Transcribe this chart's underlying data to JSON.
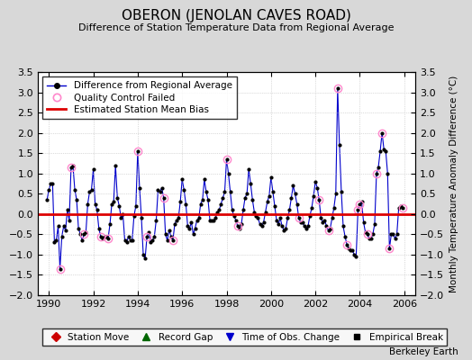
{
  "title": "OBERON (JENOLAN CAVES ROAD)",
  "subtitle": "Difference of Station Temperature Data from Regional Average",
  "ylabel_right": "Monthly Temperature Anomaly Difference (°C)",
  "credit": "Berkeley Earth",
  "xlim": [
    1989.5,
    2006.5
  ],
  "ylim": [
    -2.0,
    3.5
  ],
  "yticks": [
    -2,
    -1.5,
    -1,
    -0.5,
    0,
    0.5,
    1,
    1.5,
    2,
    2.5,
    3,
    3.5
  ],
  "xticks": [
    1990,
    1992,
    1994,
    1996,
    1998,
    2000,
    2002,
    2004,
    2006
  ],
  "bias_line": 0.0,
  "background_color": "#d8d8d8",
  "plot_bg_color": "#ffffff",
  "line_color": "#0000cc",
  "bias_color": "#dd0000",
  "qc_color": "#ff88cc",
  "data": [
    [
      1989.917,
      0.35
    ],
    [
      1990.0,
      0.6
    ],
    [
      1990.083,
      0.75
    ],
    [
      1990.167,
      0.75
    ],
    [
      1990.25,
      -0.7
    ],
    [
      1990.333,
      -0.65
    ],
    [
      1990.417,
      -0.3
    ],
    [
      1990.5,
      -1.35
    ],
    [
      1990.583,
      -0.55
    ],
    [
      1990.667,
      -0.3
    ],
    [
      1990.75,
      -0.4
    ],
    [
      1990.833,
      0.1
    ],
    [
      1990.917,
      -0.15
    ],
    [
      1991.0,
      1.15
    ],
    [
      1991.083,
      1.2
    ],
    [
      1991.167,
      0.6
    ],
    [
      1991.25,
      0.35
    ],
    [
      1991.333,
      -0.35
    ],
    [
      1991.417,
      -0.5
    ],
    [
      1991.5,
      -0.65
    ],
    [
      1991.583,
      -0.5
    ],
    [
      1991.667,
      -0.45
    ],
    [
      1991.75,
      0.25
    ],
    [
      1991.833,
      0.55
    ],
    [
      1991.917,
      0.6
    ],
    [
      1992.0,
      1.1
    ],
    [
      1992.083,
      0.25
    ],
    [
      1992.167,
      0.1
    ],
    [
      1992.25,
      -0.35
    ],
    [
      1992.333,
      -0.55
    ],
    [
      1992.417,
      -0.6
    ],
    [
      1992.5,
      -0.55
    ],
    [
      1992.583,
      -0.55
    ],
    [
      1992.667,
      -0.6
    ],
    [
      1992.75,
      -0.25
    ],
    [
      1992.833,
      0.25
    ],
    [
      1992.917,
      0.3
    ],
    [
      1993.0,
      1.2
    ],
    [
      1993.083,
      0.4
    ],
    [
      1993.167,
      0.2
    ],
    [
      1993.25,
      -0.1
    ],
    [
      1993.333,
      0.0
    ],
    [
      1993.417,
      -0.65
    ],
    [
      1993.5,
      -0.7
    ],
    [
      1993.583,
      -0.55
    ],
    [
      1993.667,
      -0.65
    ],
    [
      1993.75,
      -0.65
    ],
    [
      1993.833,
      -0.05
    ],
    [
      1993.917,
      0.2
    ],
    [
      1994.0,
      1.55
    ],
    [
      1994.083,
      0.65
    ],
    [
      1994.167,
      -0.1
    ],
    [
      1994.25,
      -1.0
    ],
    [
      1994.333,
      -1.1
    ],
    [
      1994.417,
      -0.55
    ],
    [
      1994.5,
      -0.45
    ],
    [
      1994.583,
      -0.7
    ],
    [
      1994.667,
      -0.65
    ],
    [
      1994.75,
      -0.55
    ],
    [
      1994.833,
      -0.15
    ],
    [
      1994.917,
      0.6
    ],
    [
      1995.0,
      0.55
    ],
    [
      1995.083,
      0.65
    ],
    [
      1995.167,
      0.4
    ],
    [
      1995.25,
      -0.5
    ],
    [
      1995.333,
      -0.65
    ],
    [
      1995.417,
      -0.4
    ],
    [
      1995.5,
      -0.55
    ],
    [
      1995.583,
      -0.65
    ],
    [
      1995.667,
      -0.25
    ],
    [
      1995.75,
      -0.15
    ],
    [
      1995.833,
      -0.1
    ],
    [
      1995.917,
      0.3
    ],
    [
      1996.0,
      0.85
    ],
    [
      1996.083,
      0.6
    ],
    [
      1996.167,
      0.25
    ],
    [
      1996.25,
      -0.3
    ],
    [
      1996.333,
      -0.35
    ],
    [
      1996.417,
      -0.2
    ],
    [
      1996.5,
      -0.5
    ],
    [
      1996.583,
      -0.35
    ],
    [
      1996.667,
      -0.15
    ],
    [
      1996.75,
      -0.1
    ],
    [
      1996.833,
      0.25
    ],
    [
      1996.917,
      0.35
    ],
    [
      1997.0,
      0.85
    ],
    [
      1997.083,
      0.55
    ],
    [
      1997.167,
      0.35
    ],
    [
      1997.25,
      -0.15
    ],
    [
      1997.333,
      -0.15
    ],
    [
      1997.417,
      -0.15
    ],
    [
      1997.5,
      -0.1
    ],
    [
      1997.583,
      0.05
    ],
    [
      1997.667,
      0.1
    ],
    [
      1997.75,
      0.25
    ],
    [
      1997.833,
      0.4
    ],
    [
      1997.917,
      0.55
    ],
    [
      1998.0,
      1.35
    ],
    [
      1998.083,
      1.0
    ],
    [
      1998.167,
      0.55
    ],
    [
      1998.25,
      0.1
    ],
    [
      1998.333,
      -0.05
    ],
    [
      1998.417,
      -0.15
    ],
    [
      1998.5,
      -0.3
    ],
    [
      1998.583,
      -0.35
    ],
    [
      1998.667,
      -0.25
    ],
    [
      1998.75,
      0.1
    ],
    [
      1998.833,
      0.4
    ],
    [
      1998.917,
      0.5
    ],
    [
      1999.0,
      1.1
    ],
    [
      1999.083,
      0.75
    ],
    [
      1999.167,
      0.35
    ],
    [
      1999.25,
      0.05
    ],
    [
      1999.333,
      -0.05
    ],
    [
      1999.417,
      -0.1
    ],
    [
      1999.5,
      -0.25
    ],
    [
      1999.583,
      -0.3
    ],
    [
      1999.667,
      -0.2
    ],
    [
      1999.75,
      0.05
    ],
    [
      1999.833,
      0.3
    ],
    [
      1999.917,
      0.45
    ],
    [
      2000.0,
      0.9
    ],
    [
      2000.083,
      0.55
    ],
    [
      2000.167,
      0.2
    ],
    [
      2000.25,
      -0.15
    ],
    [
      2000.333,
      -0.25
    ],
    [
      2000.417,
      -0.1
    ],
    [
      2000.5,
      -0.3
    ],
    [
      2000.583,
      -0.4
    ],
    [
      2000.667,
      -0.35
    ],
    [
      2000.75,
      -0.1
    ],
    [
      2000.833,
      0.1
    ],
    [
      2000.917,
      0.4
    ],
    [
      2001.0,
      0.7
    ],
    [
      2001.083,
      0.5
    ],
    [
      2001.167,
      0.25
    ],
    [
      2001.25,
      -0.1
    ],
    [
      2001.333,
      -0.2
    ],
    [
      2001.417,
      -0.2
    ],
    [
      2001.5,
      -0.3
    ],
    [
      2001.583,
      -0.35
    ],
    [
      2001.667,
      -0.3
    ],
    [
      2001.75,
      -0.05
    ],
    [
      2001.833,
      0.15
    ],
    [
      2001.917,
      0.45
    ],
    [
      2002.0,
      0.8
    ],
    [
      2002.083,
      0.65
    ],
    [
      2002.167,
      0.35
    ],
    [
      2002.25,
      -0.1
    ],
    [
      2002.333,
      -0.2
    ],
    [
      2002.417,
      -0.15
    ],
    [
      2002.5,
      -0.3
    ],
    [
      2002.583,
      -0.4
    ],
    [
      2002.667,
      -0.35
    ],
    [
      2002.75,
      -0.1
    ],
    [
      2002.833,
      0.15
    ],
    [
      2002.917,
      0.5
    ],
    [
      2003.0,
      3.1
    ],
    [
      2003.083,
      1.7
    ],
    [
      2003.167,
      0.55
    ],
    [
      2003.25,
      -0.3
    ],
    [
      2003.333,
      -0.55
    ],
    [
      2003.417,
      -0.75
    ],
    [
      2003.5,
      -0.85
    ],
    [
      2003.583,
      -0.9
    ],
    [
      2003.667,
      -0.9
    ],
    [
      2003.75,
      -1.0
    ],
    [
      2003.833,
      -1.05
    ],
    [
      2003.917,
      0.1
    ],
    [
      2004.0,
      0.25
    ],
    [
      2004.083,
      0.3
    ],
    [
      2004.167,
      -0.2
    ],
    [
      2004.25,
      -0.45
    ],
    [
      2004.333,
      -0.5
    ],
    [
      2004.417,
      -0.6
    ],
    [
      2004.5,
      -0.6
    ],
    [
      2004.583,
      -0.5
    ],
    [
      2004.667,
      -0.25
    ],
    [
      2004.75,
      1.0
    ],
    [
      2004.833,
      1.15
    ],
    [
      2004.917,
      1.55
    ],
    [
      2005.0,
      2.0
    ],
    [
      2005.083,
      1.6
    ],
    [
      2005.167,
      1.55
    ],
    [
      2005.25,
      1.0
    ],
    [
      2005.333,
      -0.85
    ],
    [
      2005.417,
      -0.5
    ],
    [
      2005.5,
      -0.5
    ],
    [
      2005.583,
      -0.6
    ],
    [
      2005.667,
      -0.5
    ],
    [
      2005.75,
      0.15
    ],
    [
      2005.833,
      0.2
    ],
    [
      2005.917,
      0.15
    ]
  ],
  "qc_failed": [
    [
      1990.5,
      -1.35
    ],
    [
      1991.0,
      1.15
    ],
    [
      1991.583,
      -0.5
    ],
    [
      1992.333,
      -0.55
    ],
    [
      1992.667,
      -0.6
    ],
    [
      1994.0,
      1.55
    ],
    [
      1994.417,
      -0.55
    ],
    [
      1995.167,
      0.4
    ],
    [
      1995.583,
      -0.65
    ],
    [
      1998.0,
      1.35
    ],
    [
      1998.5,
      -0.3
    ],
    [
      2001.25,
      -0.1
    ],
    [
      2002.167,
      0.35
    ],
    [
      2002.583,
      -0.4
    ],
    [
      2003.0,
      3.1
    ],
    [
      2003.417,
      -0.75
    ],
    [
      2003.917,
      0.1
    ],
    [
      2004.0,
      0.25
    ],
    [
      2004.333,
      -0.5
    ],
    [
      2004.75,
      1.0
    ],
    [
      2005.0,
      2.0
    ],
    [
      2005.333,
      -0.85
    ],
    [
      2005.917,
      0.15
    ]
  ]
}
